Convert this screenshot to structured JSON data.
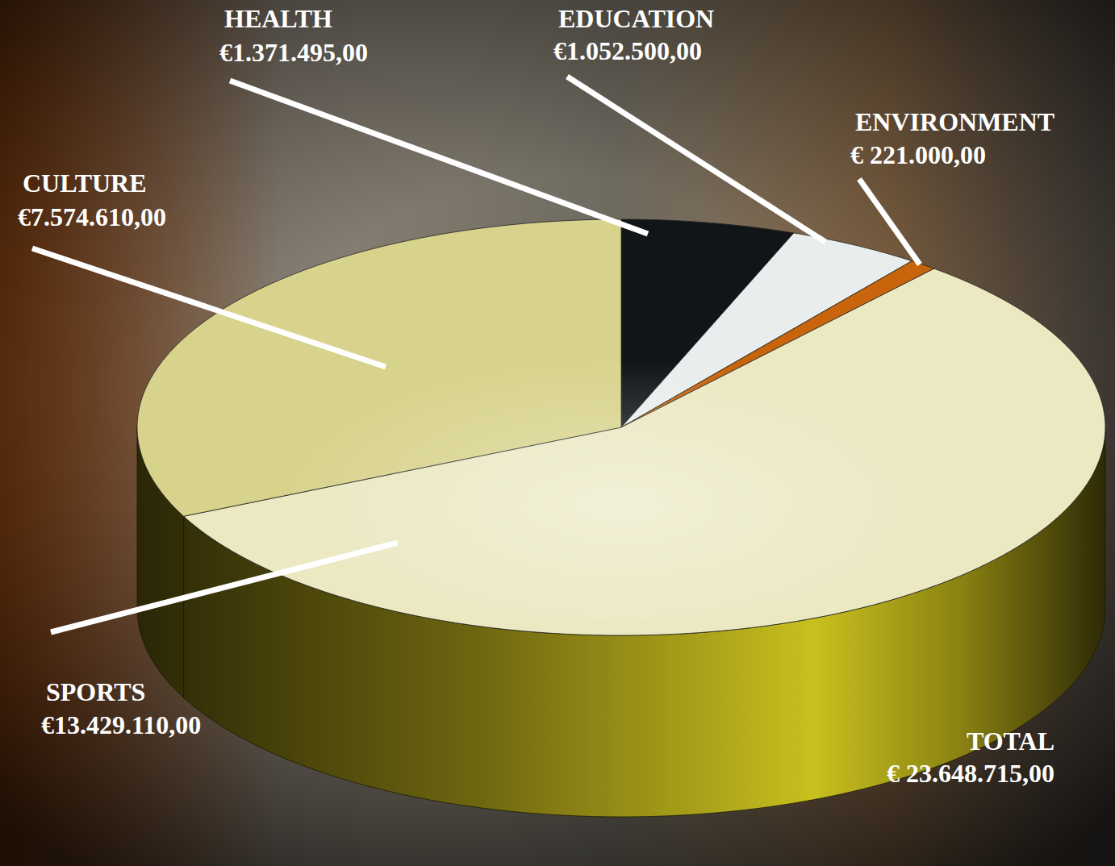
{
  "chart_data": {
    "type": "pie",
    "categories": [
      "HEALTH",
      "EDUCATION",
      "ENVIRONMENT",
      "SPORTS",
      "CULTURE"
    ],
    "values": [
      1371495,
      1052500,
      221000,
      13429110,
      7574610
    ],
    "value_labels": [
      "€1.371.495,00",
      "€1.052.500,00",
      "€ 221.000,00",
      "€13.429.110,00",
      "€7.574.610,00"
    ],
    "colors": [
      "#121518",
      "#e9eded",
      "#c8650c",
      "#ebe8c2",
      "#d8d38c"
    ],
    "data_labels": true,
    "total": {
      "label": "TOTAL",
      "value": 23648715,
      "value_label": "€ 23.648.715,00"
    }
  }
}
